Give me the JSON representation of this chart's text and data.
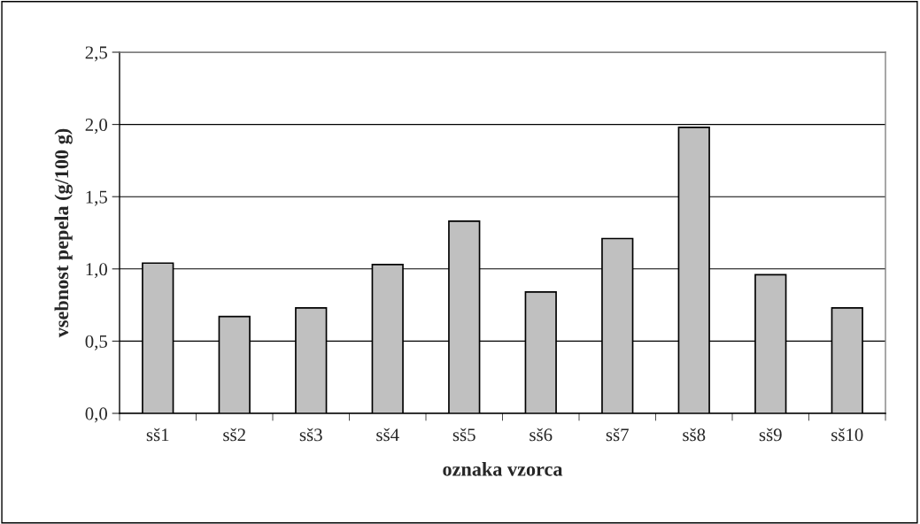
{
  "chart_data": {
    "type": "bar",
    "xlabel": "oznaka vzorca",
    "ylabel": "vsebnost pepela (g/100 g)",
    "categories": [
      "sš1",
      "sš2",
      "sš3",
      "sš4",
      "sš5",
      "sš6",
      "sš7",
      "sš8",
      "sš9",
      "sš10"
    ],
    "values": [
      1.04,
      0.67,
      0.73,
      1.03,
      1.33,
      0.84,
      1.21,
      1.98,
      0.96,
      0.73
    ],
    "color": "#c0c0c0",
    "ylim": [
      0,
      2.5
    ],
    "yticks": [
      {
        "value": 0,
        "label": "0,0"
      },
      {
        "value": 0.5,
        "label": "0,5"
      },
      {
        "value": 1,
        "label": "1,0"
      },
      {
        "value": 1.5,
        "label": "1,5"
      },
      {
        "value": 2,
        "label": "2,0"
      },
      {
        "value": 2.5,
        "label": "2,5"
      }
    ],
    "grid": "y",
    "legend": false
  }
}
